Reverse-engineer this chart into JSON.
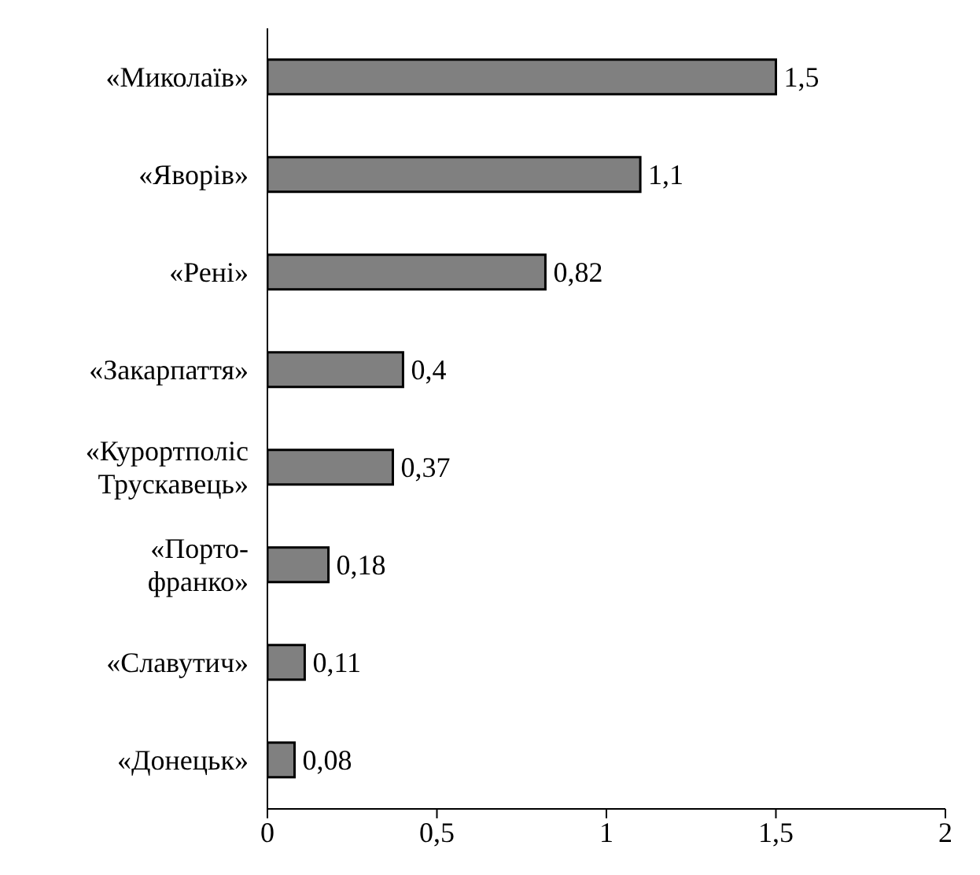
{
  "chart_data": {
    "type": "bar",
    "orientation": "horizontal",
    "categories": [
      "«Миколаїв»",
      "«Яворів»",
      "«Рені»",
      "«Закарпаття»",
      "«Курортполіс\nТрускавець»",
      "«Порто-\nфранко»",
      "«Славутич»",
      "«Донецьк»"
    ],
    "values": [
      1.5,
      1.1,
      0.82,
      0.4,
      0.37,
      0.18,
      0.11,
      0.08
    ],
    "value_labels": [
      "1,5",
      "1,1",
      "0,82",
      "0,4",
      "0,37",
      "0,18",
      "0,11",
      "0,08"
    ],
    "color": "#808080",
    "xlim": [
      0,
      2
    ],
    "xticks": [
      0,
      {
        "value": 0.5,
        "label": "0,5"
      },
      1,
      {
        "value": 1.5,
        "label": "1,5"
      },
      2
    ],
    "grid": false
  }
}
